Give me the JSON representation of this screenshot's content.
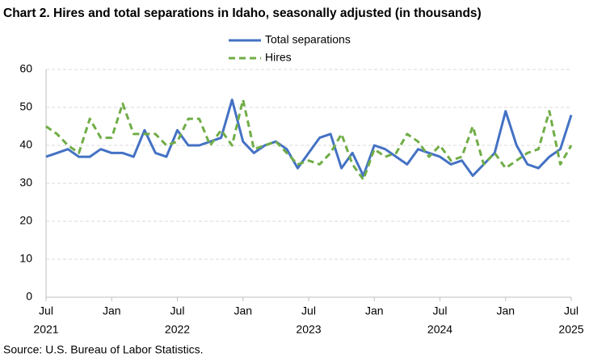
{
  "chart_data": {
    "type": "line",
    "title": "Chart 2. Hires and total separations in Idaho, seasonally adjusted (in thousands)",
    "source": "Source: U.S. Bureau of Labor Statistics.",
    "categories": [
      "Jul",
      null,
      null,
      null,
      null,
      null,
      "Jan",
      null,
      null,
      null,
      null,
      null,
      "Jul",
      null,
      null,
      null,
      null,
      null,
      "Jan",
      null,
      null,
      null,
      null,
      null,
      "Jul",
      null,
      null,
      null,
      null,
      null,
      "Jan",
      null,
      null,
      null,
      null,
      null,
      "Jul",
      null,
      null,
      null,
      null,
      null,
      "Jan",
      null,
      null,
      null,
      null,
      null,
      "Jul"
    ],
    "category_years": [
      "2021",
      null,
      null,
      null,
      null,
      null,
      null,
      null,
      null,
      null,
      null,
      null,
      "2022",
      null,
      null,
      null,
      null,
      null,
      null,
      null,
      null,
      null,
      null,
      null,
      "2023",
      null,
      null,
      null,
      null,
      null,
      null,
      null,
      null,
      null,
      null,
      null,
      "2024",
      null,
      null,
      null,
      null,
      null,
      null,
      null,
      null,
      null,
      null,
      null,
      "2025"
    ],
    "series": [
      {
        "name": "Total separations",
        "color": "#4472c4",
        "dash": false,
        "values": [
          37,
          38,
          39,
          37,
          37,
          39,
          38,
          38,
          37,
          44,
          38,
          37,
          44,
          40,
          40,
          41,
          42,
          52,
          41,
          38,
          40,
          41,
          39,
          34,
          38,
          42,
          43,
          34,
          38,
          32,
          40,
          39,
          37,
          35,
          39,
          38,
          37,
          35,
          36,
          32,
          35,
          38,
          49,
          40,
          35,
          34,
          37,
          39,
          48
        ]
      },
      {
        "name": "Hires",
        "color": "#70ad47",
        "dash": true,
        "values": [
          45,
          43,
          40,
          38,
          47,
          42,
          42,
          51,
          43,
          43,
          43,
          40,
          41,
          47,
          47,
          40,
          44,
          40,
          52,
          39,
          40,
          41,
          38,
          35,
          36,
          35,
          38,
          43,
          35,
          31,
          39,
          37,
          38,
          43,
          41,
          37,
          40,
          36,
          37,
          45,
          35,
          38,
          34,
          36,
          38,
          39,
          49,
          35,
          40
        ]
      }
    ],
    "ylim": [
      0,
      60
    ],
    "yticks": [
      0,
      10,
      20,
      30,
      40,
      50,
      60
    ],
    "grid": true
  }
}
